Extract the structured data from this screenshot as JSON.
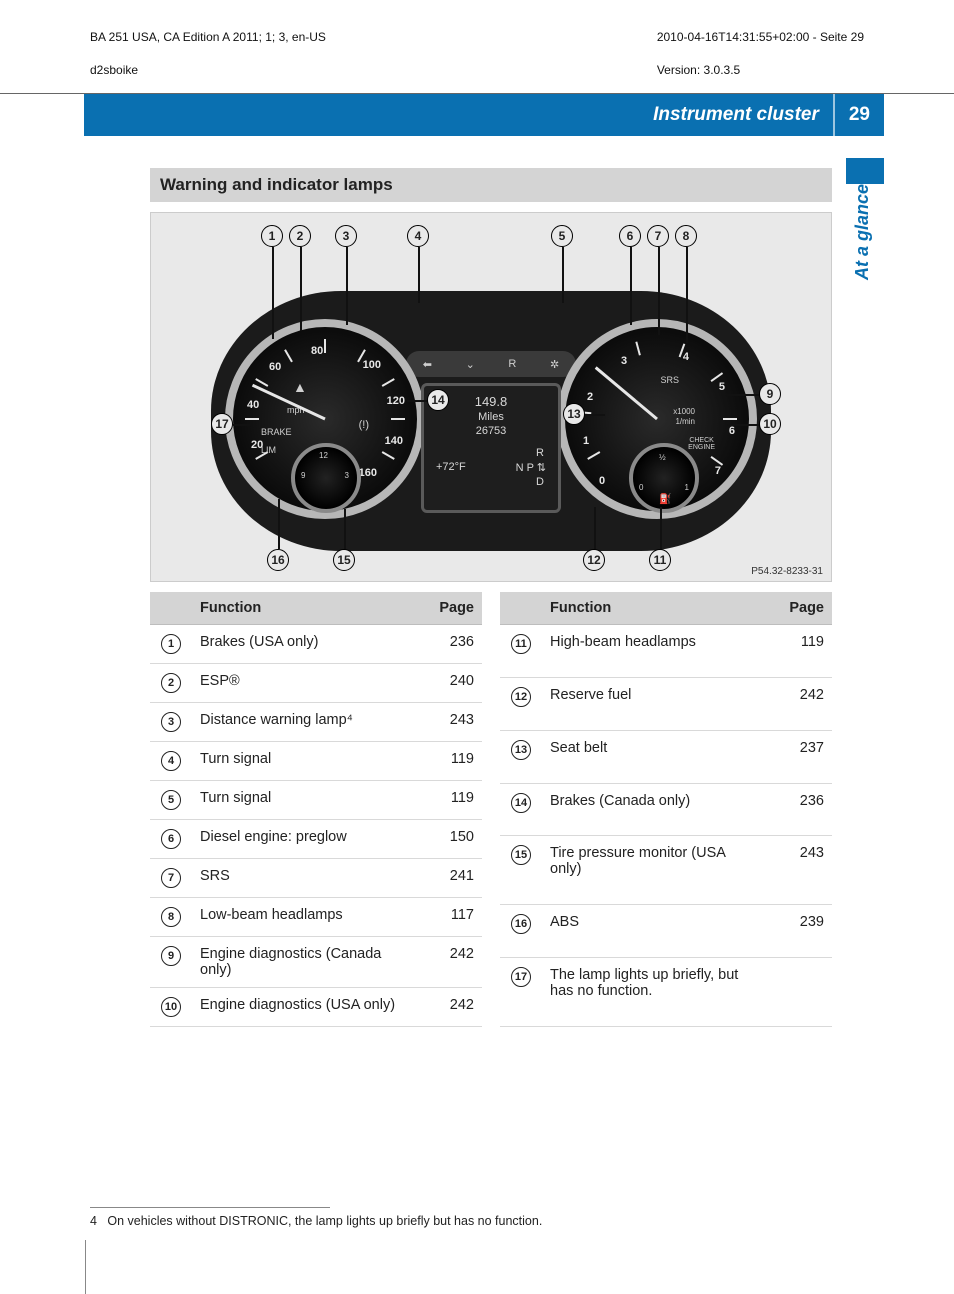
{
  "meta": {
    "left_line1": "BA 251 USA, CA Edition A 2011; 1; 3, en-US",
    "left_line2": "d2sboike",
    "right_line1": "2010-04-16T14:31:55+02:00 - Seite 29",
    "right_line2": "Version: 3.0.3.5"
  },
  "header": {
    "section_title": "Instrument cluster",
    "page_number": "29",
    "side_tab": "At a glance"
  },
  "section_heading": "Warning and indicator lamps",
  "figure": {
    "ref": "P54.32-8233-31",
    "center_display": {
      "trip": "149.8",
      "trip_unit": "Miles",
      "odo": "26753",
      "temp": "+72°F",
      "gear_r": "R",
      "gear_npd": "N  P ⇅",
      "gear_d": "D"
    },
    "top_arc": {
      "left_arrow": "⬅",
      "down": "⌄",
      "r": "R",
      "sym": "✲"
    },
    "speedo": {
      "unit": "mph",
      "brake": "BRAKE",
      "lim": "LIM",
      "numbers": {
        "n20": "20",
        "n40": "40",
        "n60": "60",
        "n80": "80",
        "n100": "100",
        "n120": "120",
        "n140": "140",
        "n160": "160"
      },
      "clock": {
        "c9": "9",
        "c12": "12",
        "c3": "3"
      }
    },
    "tach": {
      "unit1": "x1000",
      "unit2": "1/min",
      "numbers": {
        "n0": "0",
        "n1": "1",
        "n2": "2",
        "n3": "3",
        "n4": "4",
        "n5": "5",
        "n6": "6",
        "n7": "7"
      },
      "srs": "SRS",
      "check": "CHECK\nENGINE",
      "fuel": {
        "f0": "0",
        "fhalf": "½",
        "f1": "1"
      }
    },
    "callouts": [
      "1",
      "2",
      "3",
      "4",
      "5",
      "6",
      "7",
      "8",
      "9",
      "10",
      "11",
      "12",
      "13",
      "14",
      "15",
      "16",
      "17"
    ]
  },
  "tables": {
    "headers": {
      "num": "",
      "func": "Function",
      "page": "Page"
    },
    "left": [
      {
        "n": "1",
        "func": "Brakes (USA only)",
        "page": "236"
      },
      {
        "n": "2",
        "func": "ESP®",
        "page": "240"
      },
      {
        "n": "3",
        "func": "Distance warning lamp⁴",
        "page": "243"
      },
      {
        "n": "4",
        "func": "Turn signal",
        "page": "119"
      },
      {
        "n": "5",
        "func": "Turn signal",
        "page": "119"
      },
      {
        "n": "6",
        "func": "Diesel engine: preglow",
        "page": "150"
      },
      {
        "n": "7",
        "func": "SRS",
        "page": "241"
      },
      {
        "n": "8",
        "func": "Low-beam headlamps",
        "page": "117"
      },
      {
        "n": "9",
        "func": "Engine diagnostics (Canada only)",
        "page": "242"
      },
      {
        "n": "10",
        "func": "Engine diagnostics (USA only)",
        "page": "242"
      }
    ],
    "right": [
      {
        "n": "11",
        "func": "High-beam headlamps",
        "page": "119"
      },
      {
        "n": "12",
        "func": "Reserve fuel",
        "page": "242"
      },
      {
        "n": "13",
        "func": "Seat belt",
        "page": "237"
      },
      {
        "n": "14",
        "func": "Brakes (Canada only)",
        "page": "236"
      },
      {
        "n": "15",
        "func": "Tire pressure monitor (USA only)",
        "page": "243"
      },
      {
        "n": "16",
        "func": "ABS",
        "page": "239"
      },
      {
        "n": "17",
        "func": "The lamp lights up briefly, but has no function.",
        "page": ""
      }
    ]
  },
  "footnote": {
    "num": "4",
    "text": "On vehicles without DISTRONIC, the lamp lights up briefly but has no function."
  },
  "colors": {
    "blue": "#0a70b1",
    "heading_bg": "#d4d4d4",
    "figure_bg": "#e9e9e9",
    "gauge_body": "#1b1b1b",
    "dial_ring": "#b7b7b7"
  }
}
